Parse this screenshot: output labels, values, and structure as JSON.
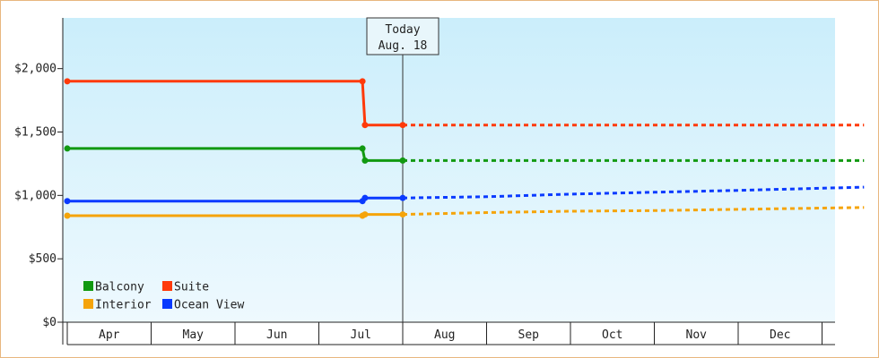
{
  "chart_data": {
    "type": "line",
    "title": "",
    "xlabel": "",
    "ylabel": "",
    "ylim": [
      0,
      2400
    ],
    "yticks": [
      {
        "value": 0,
        "label": "$0"
      },
      {
        "value": 500,
        "label": "$500"
      },
      {
        "value": 1000,
        "label": "$1,000"
      },
      {
        "value": 1500,
        "label": "$1,500"
      },
      {
        "value": 2000,
        "label": "$2,000"
      }
    ],
    "months": [
      "Apr",
      "May",
      "Jun",
      "Jul",
      "Aug",
      "Sep",
      "Oct",
      "Nov",
      "Dec"
    ],
    "today": {
      "line1": "Today",
      "line2": "Aug. 18",
      "x": 4.0
    },
    "grid": false,
    "legend_position": "bottom-left",
    "series": [
      {
        "name": "Balcony",
        "color": "#119911",
        "points": [
          [
            0.0,
            1370
          ],
          [
            3.52,
            1370
          ],
          [
            3.55,
            1275
          ],
          [
            4.0,
            1275
          ]
        ],
        "forecast": [
          [
            4.0,
            1275
          ],
          [
            9.5,
            1275
          ]
        ]
      },
      {
        "name": "Suite",
        "color": "#ff3a0a",
        "points": [
          [
            0.0,
            1900
          ],
          [
            3.52,
            1900
          ],
          [
            3.55,
            1555
          ],
          [
            4.0,
            1555
          ]
        ],
        "forecast": [
          [
            4.0,
            1555
          ],
          [
            9.5,
            1555
          ]
        ]
      },
      {
        "name": "Interior",
        "color": "#f5a40a",
        "points": [
          [
            0.0,
            840
          ],
          [
            3.52,
            840
          ],
          [
            3.55,
            850
          ],
          [
            4.0,
            850
          ]
        ],
        "forecast": [
          [
            4.0,
            850
          ],
          [
            5.0,
            865
          ],
          [
            6.0,
            875
          ],
          [
            7.0,
            880
          ],
          [
            8.0,
            890
          ],
          [
            9.5,
            905
          ]
        ]
      },
      {
        "name": "Ocean View",
        "color": "#0a3aff",
        "points": [
          [
            0.0,
            955
          ],
          [
            3.52,
            955
          ],
          [
            3.55,
            980
          ],
          [
            4.0,
            980
          ]
        ],
        "forecast": [
          [
            4.0,
            980
          ],
          [
            5.0,
            990
          ],
          [
            6.0,
            1010
          ],
          [
            7.0,
            1025
          ],
          [
            8.0,
            1040
          ],
          [
            9.5,
            1065
          ]
        ]
      }
    ]
  }
}
